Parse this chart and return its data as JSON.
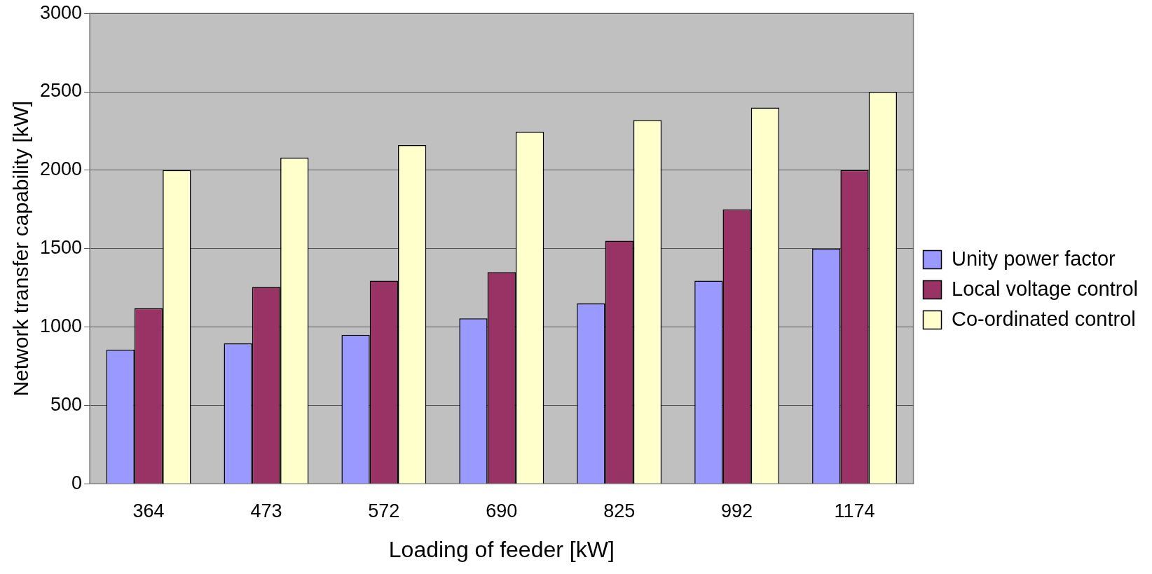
{
  "chart_data": {
    "type": "bar",
    "xlabel": "Loading of feeder [kW]",
    "ylabel": "Network transfer capability [kW]",
    "categories": [
      "364",
      "473",
      "572",
      "690",
      "825",
      "992",
      "1174"
    ],
    "series": [
      {
        "name": "Unity power factor",
        "color": "#9999ff",
        "values": [
          855,
          895,
          950,
          1055,
          1150,
          1295,
          1500
        ]
      },
      {
        "name": "Local voltage control",
        "color": "#993366",
        "values": [
          1120,
          1255,
          1295,
          1350,
          1550,
          1750,
          2000
        ]
      },
      {
        "name": "Co-ordinated control",
        "color": "#ffffcc",
        "values": [
          2000,
          2080,
          2160,
          2245,
          2320,
          2400,
          2500
        ]
      }
    ],
    "ylim": [
      0,
      3000
    ],
    "yticks": [
      0,
      500,
      1000,
      1500,
      2000,
      2500,
      3000
    ],
    "grid": "y",
    "legend": "right"
  }
}
